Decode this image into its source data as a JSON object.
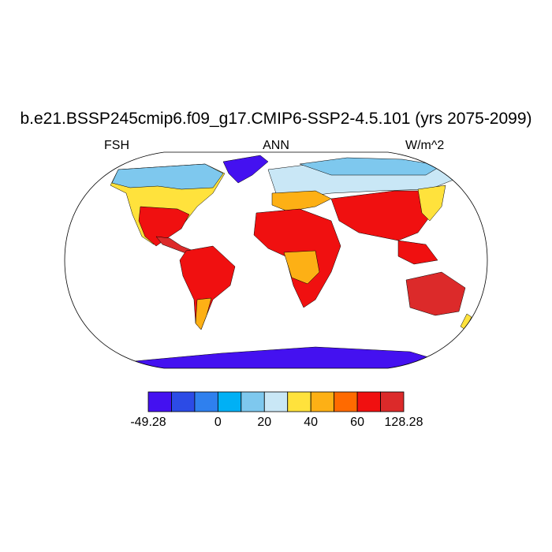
{
  "title": "b.e21.BSSP245cmip6.f09_g17.CMIP6-SSP2-4.5.101 (yrs 2075-2099)",
  "subtitle_left": "FSH",
  "subtitle_center": "ANN",
  "subtitle_right": "W/m^2",
  "colorbar": {
    "colors": [
      "#4411f0",
      "#2c4be6",
      "#2f80ee",
      "#00b0f5",
      "#7ec8ee",
      "#c9e7f6",
      "#ffe23c",
      "#fdb015",
      "#ff6a00",
      "#f01010",
      "#dc2a2a"
    ],
    "labels": [
      "-49.28",
      "0",
      "20",
      "40",
      "60",
      "128.28"
    ]
  },
  "map_colors": {
    "ocean": "#ffffff",
    "antarctica": "#4411f0",
    "greenland": "#4411f0",
    "cold": "#2f80ee",
    "cool": "#7ec8ee",
    "pale": "#c9e7f6",
    "mild": "#ffe23c",
    "warm": "#fdb015",
    "hot": "#ff6a00",
    "hotter": "#f01010",
    "hottest": "#dc2a2a"
  }
}
